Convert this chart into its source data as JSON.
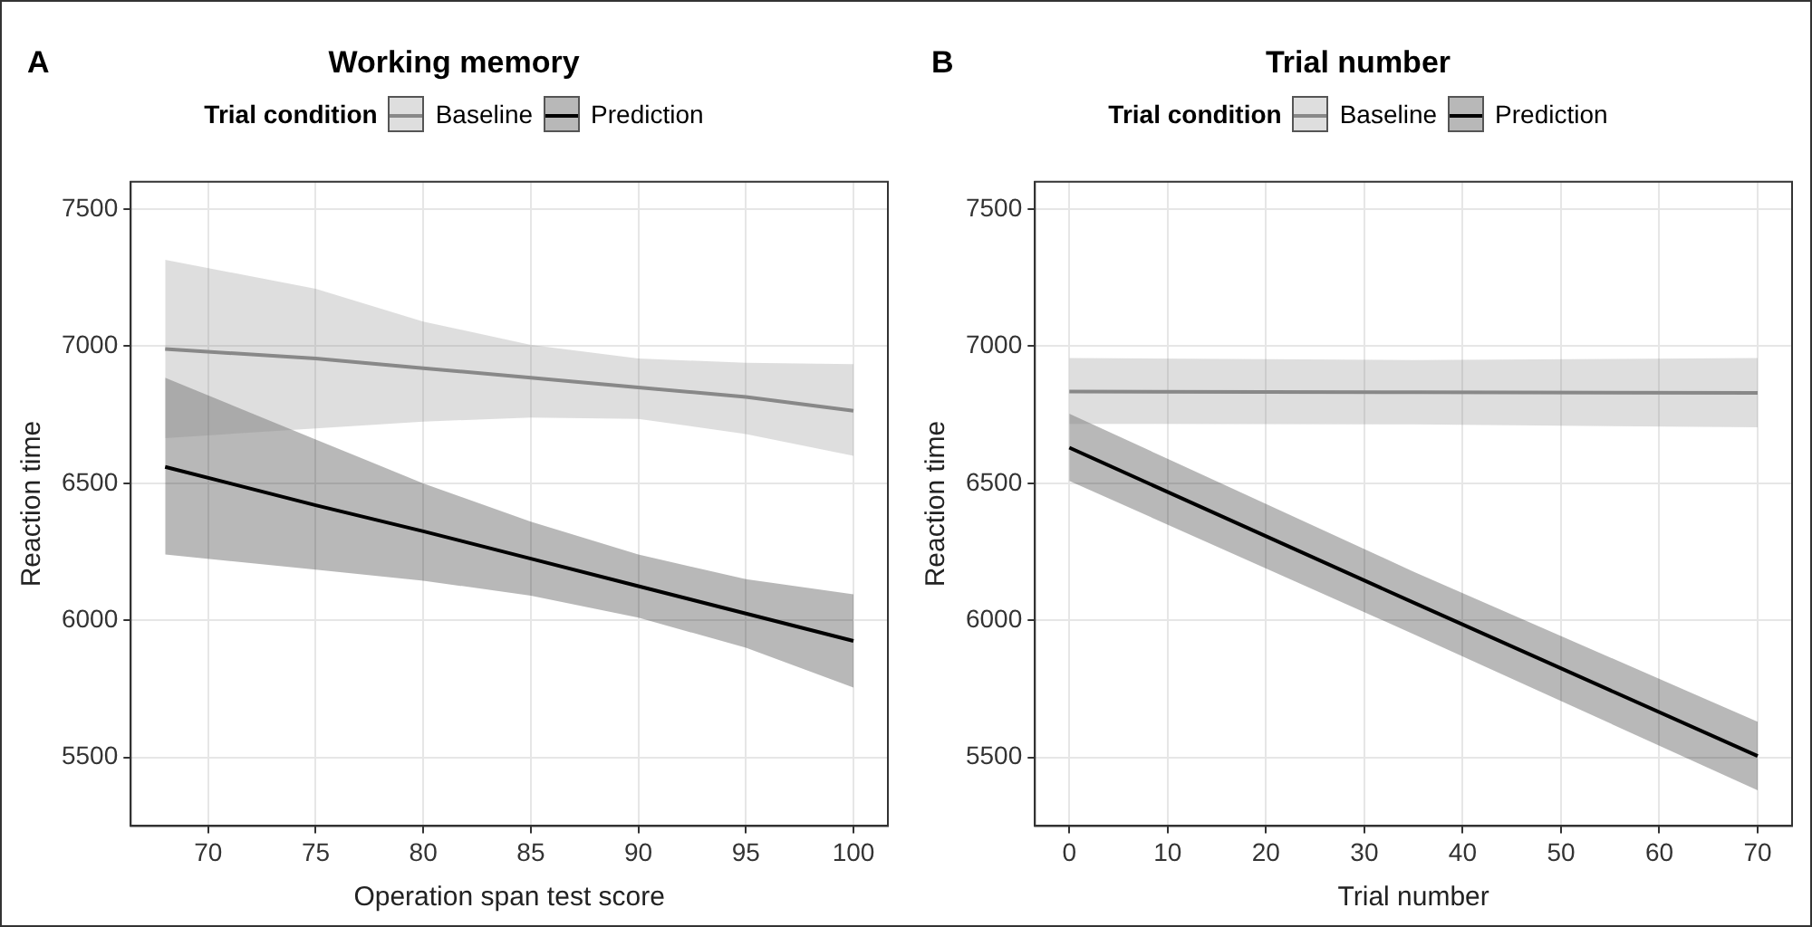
{
  "chart_data": [
    {
      "type": "line",
      "title": "Working memory",
      "xlabel": "Operation span test score",
      "ylabel": "Reaction time",
      "legend_title": "Trial condition",
      "legend": "top",
      "grid": true,
      "marker": "none",
      "annotations": [
        "A"
      ],
      "xlim": [
        66.4,
        101.6
      ],
      "xticks": [
        70,
        75,
        80,
        85,
        90,
        95,
        100
      ],
      "ylim": [
        5250,
        7600
      ],
      "yticks": [
        5500,
        6000,
        6500,
        7000,
        7500
      ],
      "x": [
        68,
        75,
        80,
        85,
        90,
        95,
        100
      ],
      "series": [
        {
          "name": "Baseline",
          "color": "#888888",
          "values": [
            6990,
            6955,
            6920,
            6885,
            6850,
            6815,
            6765
          ],
          "lower": [
            6665,
            6700,
            6725,
            6740,
            6735,
            6680,
            6600
          ],
          "upper": [
            7315,
            7210,
            7090,
            7005,
            6955,
            6940,
            6935
          ]
        },
        {
          "name": "Prediction",
          "color": "#000000",
          "values": [
            6560,
            6420,
            6325,
            6225,
            6125,
            6025,
            5925
          ],
          "lower": [
            6240,
            6185,
            6145,
            6090,
            6010,
            5900,
            5755
          ],
          "upper": [
            6885,
            6660,
            6500,
            6360,
            6240,
            6150,
            6095
          ]
        }
      ]
    },
    {
      "type": "line",
      "title": "Trial number",
      "xlabel": "Trial number",
      "ylabel": "Reaction time",
      "legend_title": "Trial condition",
      "legend": "top",
      "grid": true,
      "marker": "none",
      "annotations": [
        "B"
      ],
      "xlim": [
        -3.5,
        73.5
      ],
      "xticks": [
        0,
        10,
        20,
        30,
        40,
        50,
        60,
        70
      ],
      "ylim": [
        5250,
        7600
      ],
      "yticks": [
        5500,
        6000,
        6500,
        7000,
        7500
      ],
      "x": [
        0,
        35,
        70
      ],
      "series": [
        {
          "name": "Baseline",
          "color": "#888888",
          "values": [
            6835,
            6832,
            6830
          ],
          "lower": [
            6717,
            6715,
            6704
          ],
          "upper": [
            6957,
            6950,
            6957
          ]
        },
        {
          "name": "Prediction",
          "color": "#000000",
          "values": [
            6630,
            6065,
            5505
          ],
          "lower": [
            6509,
            5950,
            5380
          ],
          "upper": [
            6754,
            6178,
            5630
          ]
        }
      ]
    }
  ]
}
